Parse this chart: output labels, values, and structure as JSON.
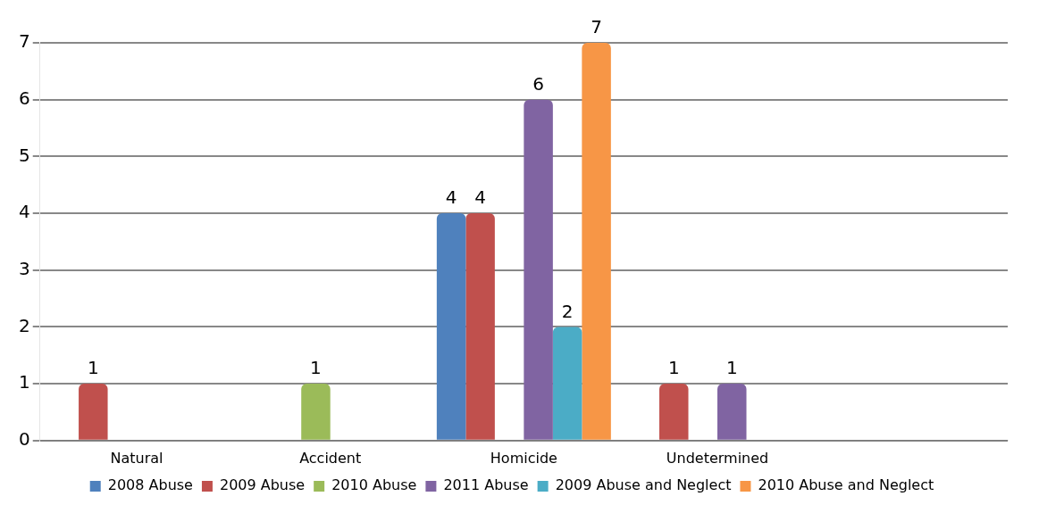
{
  "chart_data": {
    "type": "bar",
    "categories": [
      "Natural",
      "Accident",
      "Homicide",
      "Undetermined",
      null
    ],
    "series": [
      {
        "name": "2008 Abuse",
        "color": "#4f81bd",
        "values": [
          null,
          null,
          4,
          null,
          null
        ]
      },
      {
        "name": "2009 Abuse",
        "color": "#c0504d",
        "values": [
          1,
          null,
          4,
          1,
          null
        ]
      },
      {
        "name": "2010 Abuse",
        "color": "#9bbb59",
        "values": [
          null,
          1,
          null,
          null,
          null
        ]
      },
      {
        "name": "2011 Abuse",
        "color": "#8064a2",
        "values": [
          null,
          null,
          6,
          1,
          null
        ]
      },
      {
        "name": "2009 Abuse and Neglect",
        "color": "#4bacc6",
        "values": [
          null,
          null,
          2,
          null,
          null
        ]
      },
      {
        "name": "2010 Abuse and Neglect",
        "color": "#f79646",
        "values": [
          null,
          null,
          7,
          null,
          null
        ]
      }
    ],
    "ylim": [
      0,
      7
    ],
    "yticks": [
      0,
      1,
      2,
      3,
      4,
      5,
      6,
      7
    ],
    "grid": "y",
    "legend": "bottom",
    "data_labels": true
  }
}
